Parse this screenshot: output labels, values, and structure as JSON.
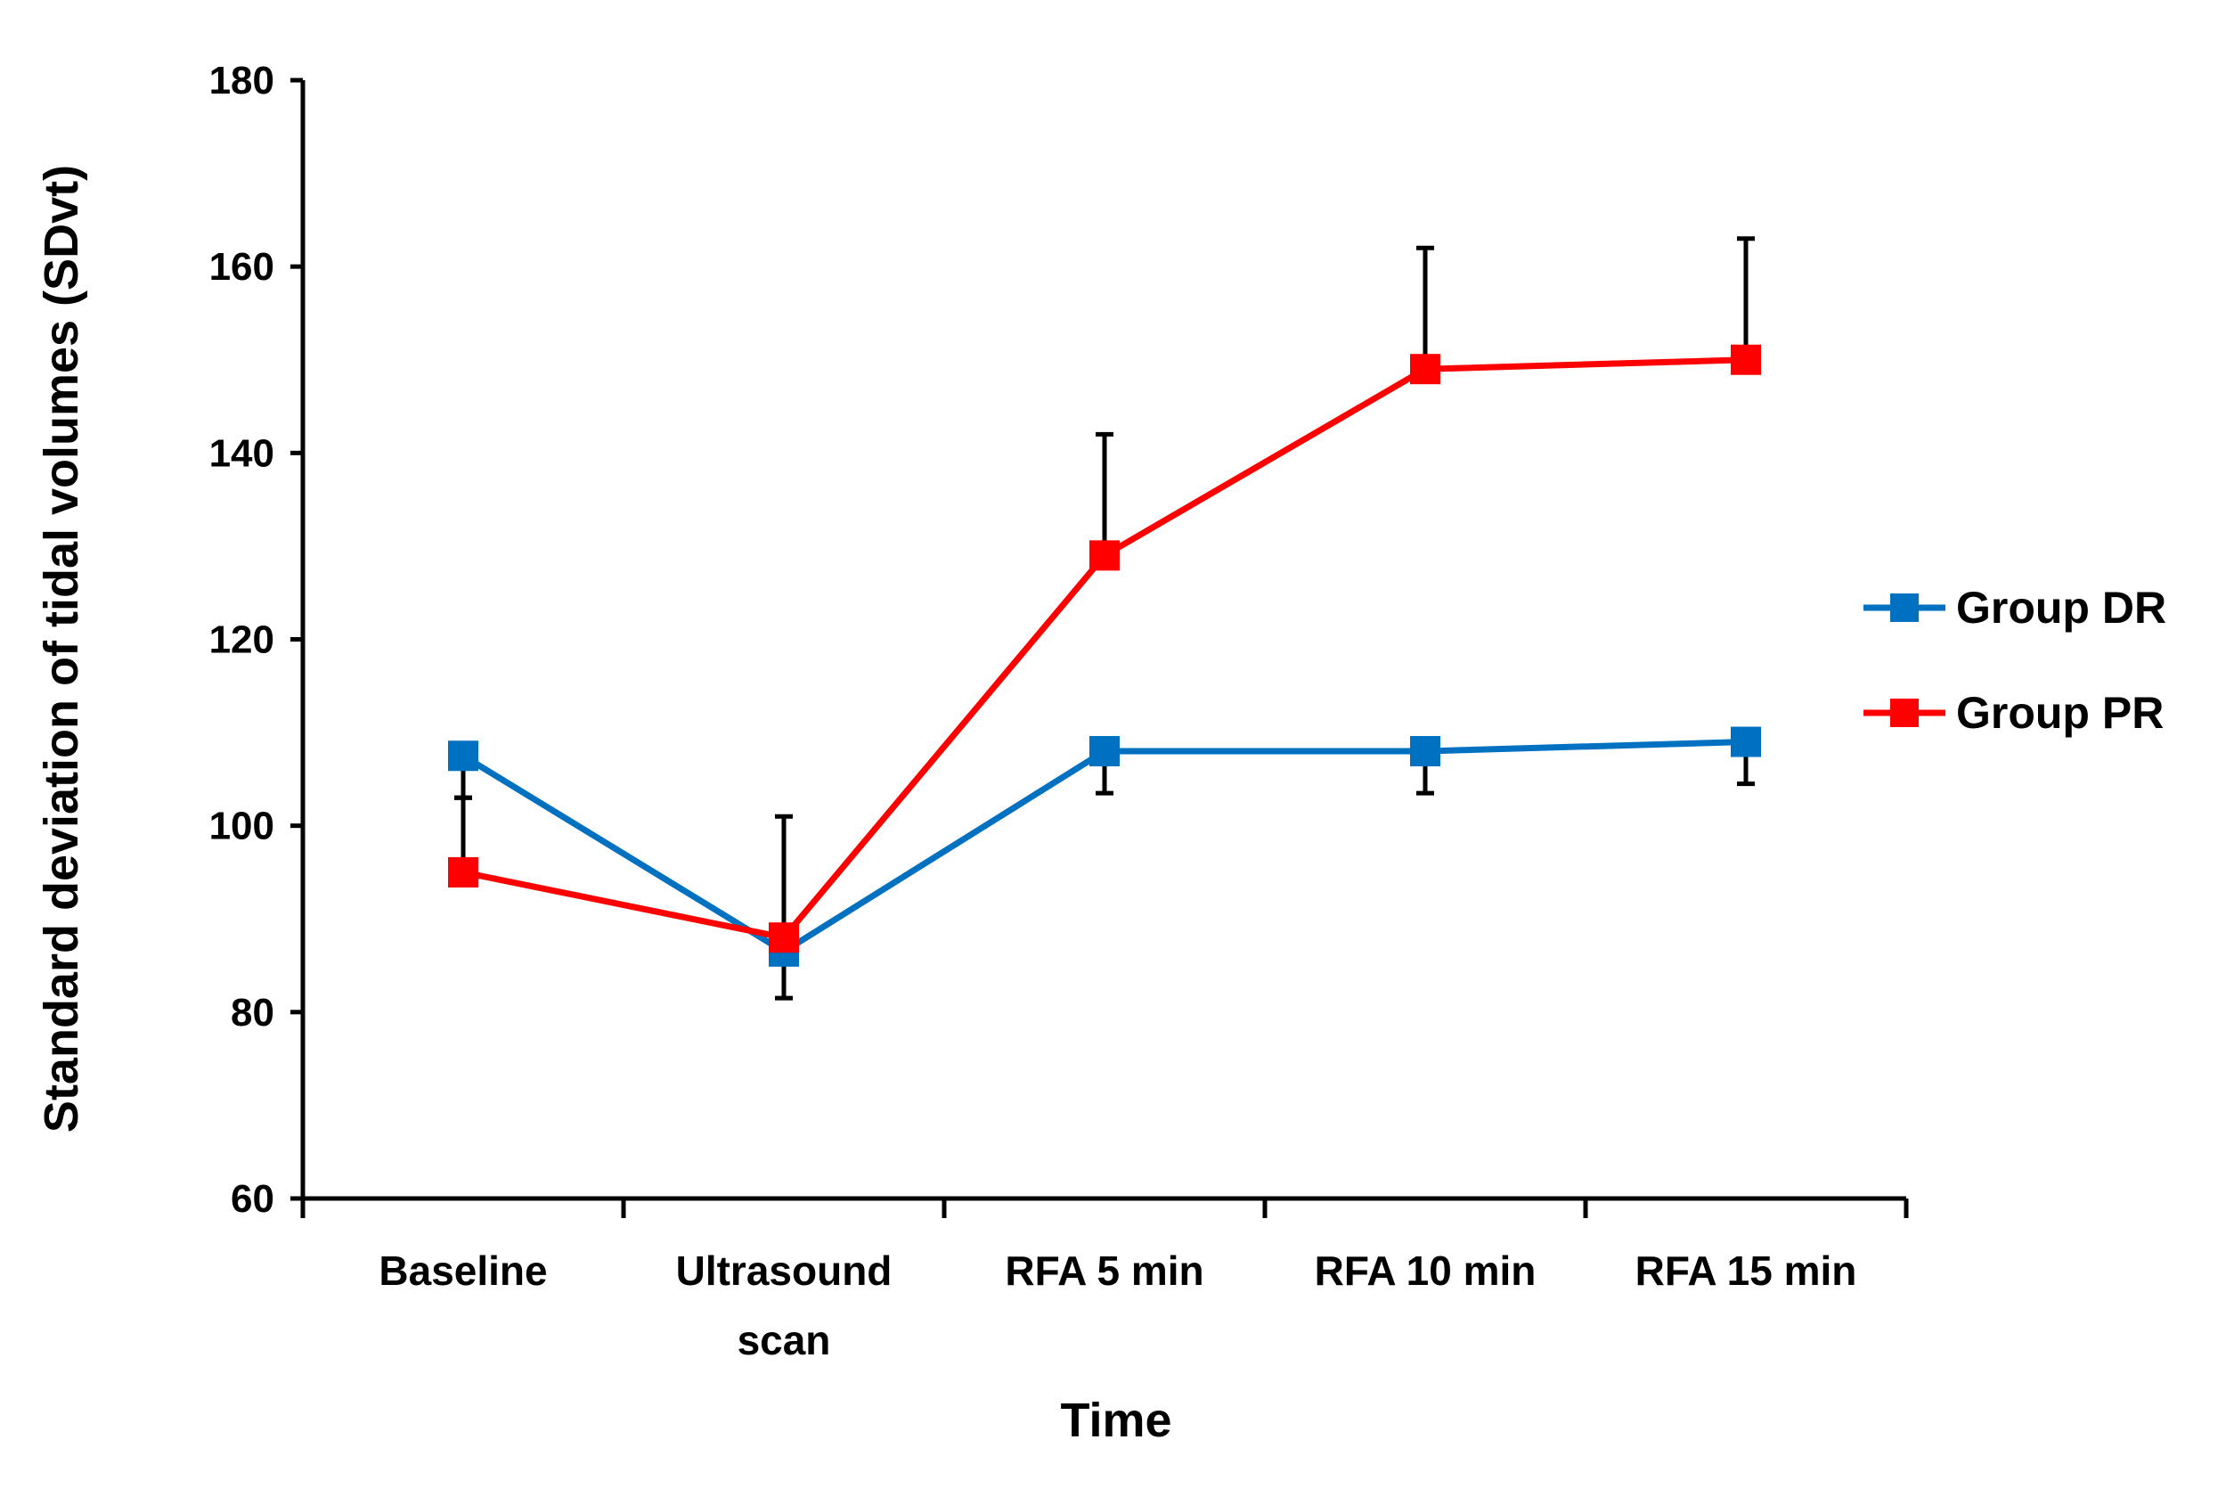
{
  "chart_data": {
    "type": "line",
    "title": "",
    "xlabel": "Time",
    "ylabel": "Standard deviation of tidal volumes (SDvt)",
    "ylim": [
      60,
      180
    ],
    "yticks": [
      60,
      80,
      100,
      120,
      140,
      160,
      180
    ],
    "categories": [
      "Baseline",
      "Ultrasound scan",
      "RFA 5 min",
      "RFA 10 min",
      "RFA 15 min"
    ],
    "category_lines": [
      [
        "Baseline"
      ],
      [
        "Ultrasound",
        "scan"
      ],
      [
        "RFA 5 min"
      ],
      [
        "RFA 10 min"
      ],
      [
        "RFA 15 min"
      ]
    ],
    "grid": false,
    "legend_position": "right",
    "series": [
      {
        "name": "Group DR",
        "color": "#0070C0",
        "marker": "square",
        "values": [
          107.5,
          86.5,
          108,
          108,
          109
        ],
        "error_bars": [
          {
            "low": 103,
            "high": 107.5
          },
          {
            "low": 81.5,
            "high": 86.5
          },
          {
            "low": 103.5,
            "high": 108
          },
          {
            "low": 103.5,
            "high": 108
          },
          {
            "low": 104.5,
            "high": 109
          }
        ]
      },
      {
        "name": "Group PR",
        "color": "#FF0000",
        "marker": "square",
        "values": [
          95,
          88,
          129,
          149,
          150
        ],
        "error_bars": [
          {
            "low": 95,
            "high": 103
          },
          {
            "low": 88,
            "high": 101
          },
          {
            "low": 129,
            "high": 142
          },
          {
            "low": 149,
            "high": 162
          },
          {
            "low": 150,
            "high": 163
          }
        ]
      }
    ]
  }
}
